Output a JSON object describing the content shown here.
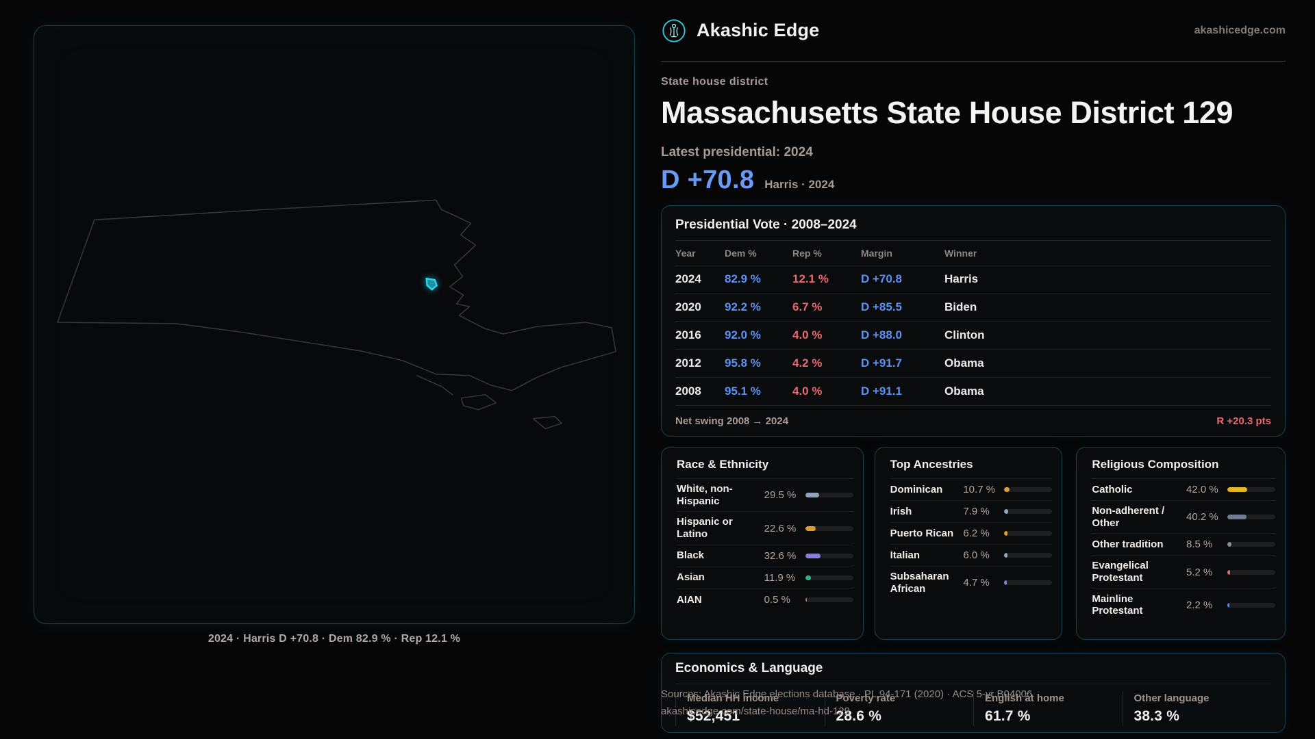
{
  "brand": {
    "name": "Akashic Edge",
    "domain": "akashicedge.com"
  },
  "page": {
    "eyebrow": "State house district",
    "title": "Massachusetts State House District 129",
    "latest_label": "Latest presidential: 2024",
    "margin_big": "D +70.8",
    "margin_context": "Harris · 2024"
  },
  "map": {
    "caption": "2024 · Harris D +70.8 · Dem 82.9 % · Rep 12.1 %"
  },
  "presidential_vote": {
    "title": "Presidential Vote · 2008–2024",
    "columns": [
      "Year",
      "Dem %",
      "Rep %",
      "Margin",
      "Winner"
    ],
    "rows": [
      {
        "year": "2024",
        "dem": "82.9 %",
        "rep": "12.1 %",
        "margin": "D +70.8",
        "winner": "Harris"
      },
      {
        "year": "2020",
        "dem": "92.2 %",
        "rep": "6.7 %",
        "margin": "D +85.5",
        "winner": "Biden"
      },
      {
        "year": "2016",
        "dem": "92.0 %",
        "rep": "4.0 %",
        "margin": "D +88.0",
        "winner": "Clinton"
      },
      {
        "year": "2012",
        "dem": "95.8 %",
        "rep": "4.2 %",
        "margin": "D +91.7",
        "winner": "Obama"
      },
      {
        "year": "2008",
        "dem": "95.1 %",
        "rep": "4.0 %",
        "margin": "D +91.1",
        "winner": "Obama"
      }
    ],
    "net_swing_label": "Net swing 2008 → 2024",
    "net_swing_value": "R +20.3 pts"
  },
  "race_ethnicity": {
    "title": "Race & Ethnicity",
    "rows": [
      {
        "label": "White, non-Hispanic",
        "value": "29.5 %",
        "pct": 29.5,
        "color": "#91a4bd"
      },
      {
        "label": "Hispanic or Latino",
        "value": "22.6 %",
        "pct": 22.6,
        "color": "#dd9b35"
      },
      {
        "label": "Black",
        "value": "32.6 %",
        "pct": 32.6,
        "color": "#8d7ce2"
      },
      {
        "label": "Asian",
        "value": "11.9 %",
        "pct": 11.9,
        "color": "#2cb68c"
      },
      {
        "label": "AIAN",
        "value": "0.5 %",
        "pct": 0.5,
        "color": "#c47a28"
      }
    ]
  },
  "top_ancestries": {
    "title": "Top Ancestries",
    "rows": [
      {
        "label": "Dominican",
        "value": "10.7 %",
        "pct": 10.7,
        "color": "#e0a033"
      },
      {
        "label": "Irish",
        "value": "7.9 %",
        "pct": 7.9,
        "color": "#8fa9c0"
      },
      {
        "label": "Puerto Rican",
        "value": "6.2 %",
        "pct": 6.2,
        "color": "#e0a033"
      },
      {
        "label": "Italian",
        "value": "6.0 %",
        "pct": 6.0,
        "color": "#8fa9c0"
      },
      {
        "label": "Subsaharan African",
        "value": "4.7 %",
        "pct": 4.7,
        "color": "#8d7ce2"
      }
    ]
  },
  "religious_composition": {
    "title": "Religious Composition",
    "rows": [
      {
        "label": "Catholic",
        "value": "42.0 %",
        "pct": 42.0,
        "color": "#e3b722"
      },
      {
        "label": "Non-adherent / Other",
        "value": "40.2 %",
        "pct": 40.2,
        "color": "#6e7d92"
      },
      {
        "label": "Other tradition",
        "value": "8.5 %",
        "pct": 8.5,
        "color": "#8b8f94"
      },
      {
        "label": "Evangelical Protestant",
        "value": "5.2 %",
        "pct": 5.2,
        "color": "#e06c6c"
      },
      {
        "label": "Mainline Protestant",
        "value": "2.2 %",
        "pct": 2.2,
        "color": "#5d8fe8"
      }
    ]
  },
  "economics": {
    "title": "Economics & Language",
    "stats": [
      {
        "label": "Median HH income",
        "value": "$52,451"
      },
      {
        "label": "Poverty rate",
        "value": "28.6 %"
      },
      {
        "label": "English at home",
        "value": "61.7 %"
      },
      {
        "label": "Other language",
        "value": "38.3 %"
      }
    ]
  },
  "footer": {
    "line1": "Sources: Akashic Edge elections database · PL 94-171 (2020) · ACS 5-yr B04006",
    "line2": "akashicedge.com/state-house/ma-hd-129"
  },
  "colors": {
    "dem": "#5e92f0",
    "rep": "#e9696f",
    "accent": "#2ed5ef"
  }
}
